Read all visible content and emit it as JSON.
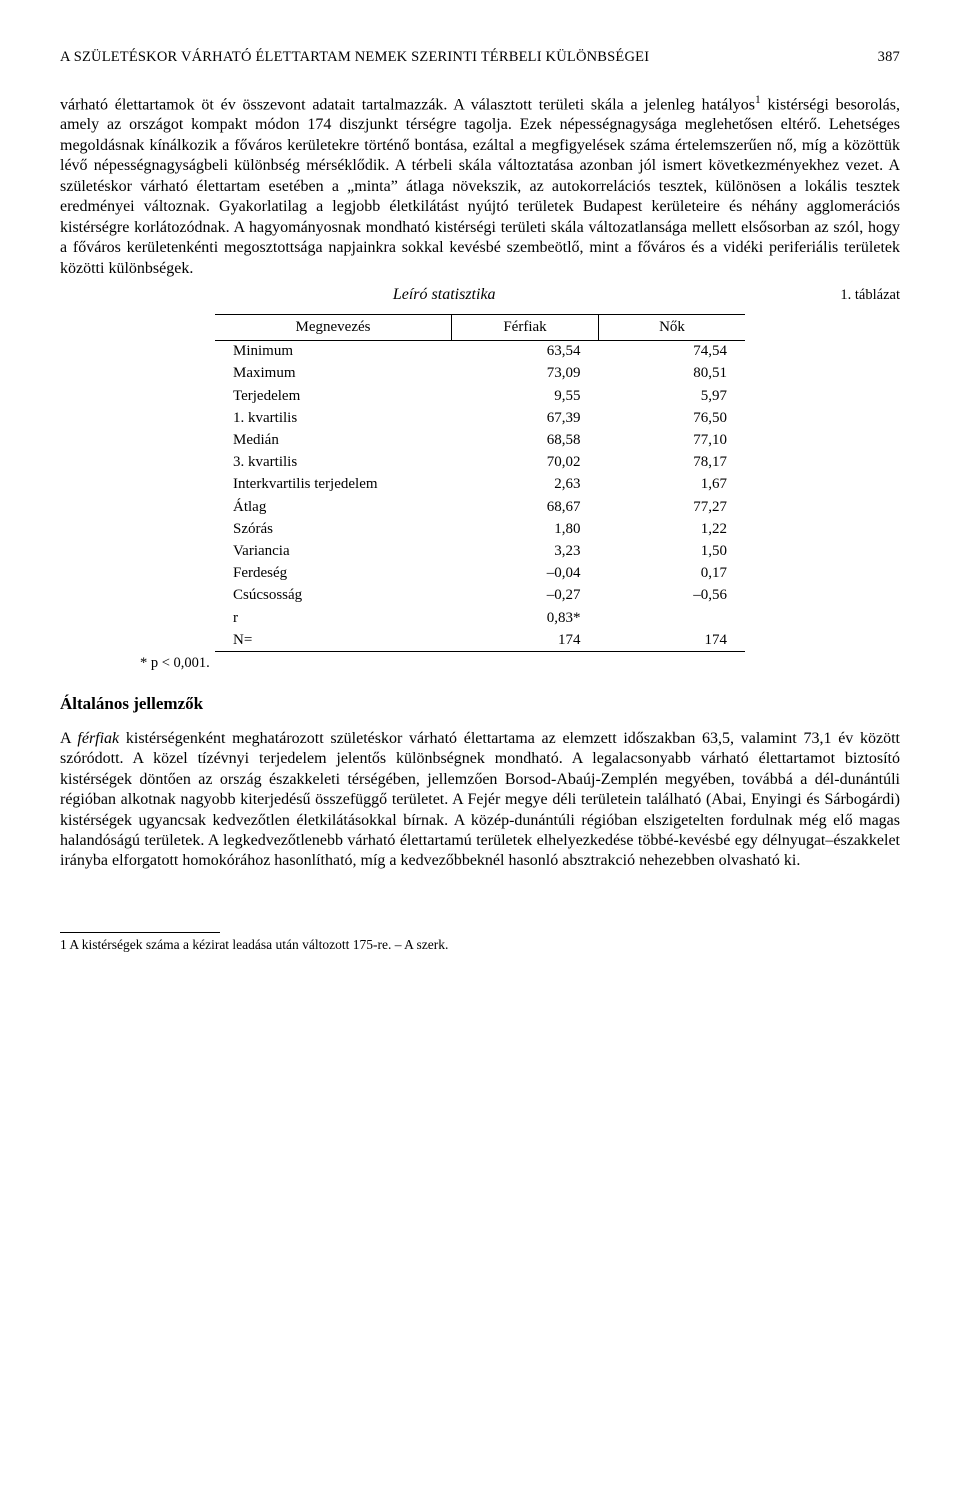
{
  "running_head": {
    "title": "A SZÜLETÉSKOR VÁRHATÓ ÉLETTARTAM NEMEK SZERINTI TÉRBELI KÜLÖNBSÉGEI",
    "page_number": "387"
  },
  "paragraph1_html": "várható élettartamok öt év összevont adatait tartalmazzák. A választott területi skála a jelenleg hatályos<sup>1</sup> kistérségi besorolás, amely az országot kompakt módon 174 diszjunkt térségre tagolja. Ezek népességnagysága meglehetősen eltérő. Lehetséges megoldásnak kínálkozik a főváros kerületekre történő bontása, ezáltal a megfigyelések száma értelemszerűen nő, míg a közöttük lévő népességnagyságbeli különbség mérséklődik. A térbeli skála változtatása azonban jól ismert következményekhez vezet. A születéskor várható élettartam esetében a „minta” átlaga növekszik, az autokorrelációs tesztek, különösen a lokális tesztek eredményei változnak. Gyakorlatilag a legjobb életkilátást nyújtó területek Budapest kerületeire és néhány agglomerációs kistérségre korlátozódnak. A hagyományosnak mondható kistérségi területi skála változatlansága mellett elsősorban az szól, hogy a főváros kerületenkénti megosztottsága napjainkra sokkal kevésbé szembeötlő, mint a főváros és a vidéki periferiális területek közötti különbségek.",
  "table": {
    "number_label": "1. táblázat",
    "title": "Leíró statisztika",
    "header": {
      "name": "Megnevezés",
      "col1": "Férfiak",
      "col2": "Nők"
    },
    "rows": [
      {
        "label": "Minimum",
        "m": "63,54",
        "f": "74,54"
      },
      {
        "label": "Maximum",
        "m": "73,09",
        "f": "80,51"
      },
      {
        "label": "Terjedelem",
        "m": "9,55",
        "f": "5,97"
      },
      {
        "label": "1. kvartilis",
        "m": "67,39",
        "f": "76,50"
      },
      {
        "label": "Medián",
        "m": "68,58",
        "f": "77,10"
      },
      {
        "label": "3. kvartilis",
        "m": "70,02",
        "f": "78,17"
      },
      {
        "label": "Interkvartilis terjedelem",
        "m": "2,63",
        "f": "1,67"
      },
      {
        "label": "Átlag",
        "m": "68,67",
        "f": "77,27"
      },
      {
        "label": "Szórás",
        "m": "1,80",
        "f": "1,22"
      },
      {
        "label": "Variancia",
        "m": "3,23",
        "f": "1,50"
      },
      {
        "label": "Ferdeség",
        "m": "–0,04",
        "f": "0,17"
      },
      {
        "label": "Csúcsosság",
        "m": "–0,27",
        "f": "–0,56"
      },
      {
        "label": "r",
        "m": "0,83*",
        "f": ""
      },
      {
        "label": "N=",
        "m": "174",
        "f": "174"
      }
    ],
    "footnote": "* p < 0,001."
  },
  "section_heading": "Általános jellemzők",
  "paragraph2_html": "A <i>férfiak</i> kistérségenként meghatározott születéskor várható élettartama az elemzett időszakban 63,5, valamint 73,1 év között szóródott. A közel tízévnyi terjedelem jelentős különbségnek mondható. A legalacsonyabb várható élettartamot biztosító kistérségek döntően az ország északkeleti térségében, jellemzően Borsod-Abaúj-Zemplén megyében, továbbá a dél-dunántúli régióban alkotnak nagyobb kiterjedésű összefüggő területet. A Fejér megye déli területein található (Abai, Enyingi és Sárbogárdi) kistérségek ugyancsak kedvezőtlen életkilátásokkal bírnak. A közép-dunántúli régióban elszigetelten fordulnak még elő magas halandóságú területek. A legkedvezőtlenebb várható élettartamú területek elhelyezkedése többé-kevésbé egy délnyugat–északkelet irányba elforgatott homokórához hasonlítható, míg a kedvezőbbeknél hasonló absztrakció nehezebben olvasható ki.",
  "page_footnote": "1 A kistérségek száma a kézirat leadása után változott 175-re. – A szerk."
}
